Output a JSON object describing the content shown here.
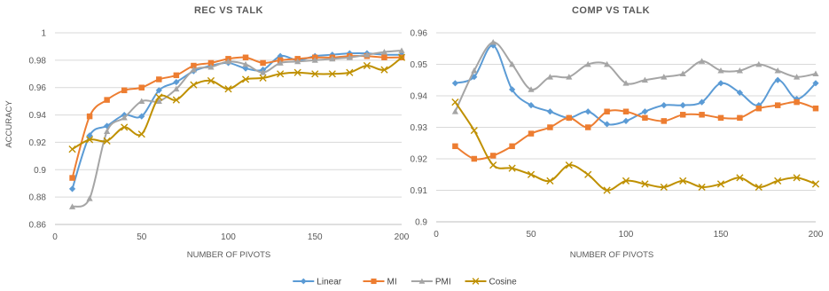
{
  "colors": {
    "Linear": "#5b9bd5",
    "MI": "#ed7d31",
    "PMI": "#a5a5a5",
    "Cosine": "#bf9000",
    "grid": "#d9d9d9",
    "text": "#595959"
  },
  "legend": {
    "placement": "bottom-center",
    "items": [
      {
        "name": "Linear",
        "marker": "diamond"
      },
      {
        "name": "MI",
        "marker": "square"
      },
      {
        "name": "PMI",
        "marker": "triangle"
      },
      {
        "name": "Cosine",
        "marker": "x"
      }
    ]
  },
  "chart_data": [
    {
      "type": "line",
      "title": "REC VS TALK",
      "xlabel": "NUMBER OF PIVOTS",
      "ylabel": "ACCURACY",
      "xlim": [
        0,
        200
      ],
      "ylim": [
        0.86,
        1
      ],
      "xticks": [
        0,
        50,
        100,
        150,
        200
      ],
      "yticks": [
        0.86,
        0.88,
        0.9,
        0.92,
        0.94,
        0.96,
        0.98,
        1
      ],
      "ytick_labels": [
        "0.86",
        "0.88",
        "0.9",
        "0.92",
        "0.94",
        "0.96",
        "0.98",
        "1"
      ],
      "grid": "horizontal",
      "x": [
        10,
        20,
        30,
        40,
        50,
        60,
        70,
        80,
        90,
        100,
        110,
        120,
        130,
        140,
        150,
        160,
        170,
        180,
        190,
        200
      ],
      "series": [
        {
          "name": "Linear",
          "values": [
            0.886,
            0.925,
            0.932,
            0.94,
            0.939,
            0.958,
            0.964,
            0.972,
            0.976,
            0.978,
            0.974,
            0.973,
            0.983,
            0.98,
            0.983,
            0.984,
            0.985,
            0.985,
            0.984,
            0.984
          ]
        },
        {
          "name": "MI",
          "values": [
            0.894,
            0.939,
            0.951,
            0.958,
            0.96,
            0.966,
            0.969,
            0.976,
            0.978,
            0.981,
            0.982,
            0.978,
            0.98,
            0.981,
            0.982,
            0.982,
            0.983,
            0.983,
            0.982,
            0.982
          ]
        },
        {
          "name": "PMI",
          "values": [
            0.873,
            0.879,
            0.928,
            0.938,
            0.95,
            0.95,
            0.959,
            0.973,
            0.975,
            0.979,
            0.977,
            0.971,
            0.978,
            0.979,
            0.98,
            0.981,
            0.982,
            0.984,
            0.986,
            0.987
          ]
        },
        {
          "name": "Cosine",
          "values": [
            0.915,
            0.922,
            0.921,
            0.931,
            0.926,
            0.953,
            0.951,
            0.962,
            0.965,
            0.959,
            0.966,
            0.967,
            0.97,
            0.971,
            0.97,
            0.97,
            0.971,
            0.976,
            0.973,
            0.982
          ]
        }
      ]
    },
    {
      "type": "line",
      "title": "COMP VS TALK",
      "xlabel": "NUMBER OF PIVOTS",
      "ylabel": "",
      "xlim": [
        0,
        200
      ],
      "ylim": [
        0.9,
        0.96
      ],
      "xticks": [
        0,
        50,
        100,
        150,
        200
      ],
      "yticks": [
        0.9,
        0.91,
        0.92,
        0.93,
        0.94,
        0.95,
        0.96
      ],
      "ytick_labels": [
        "0.9",
        "0.91",
        "0.92",
        "0.93",
        "0.94",
        "0.95",
        "0.96"
      ],
      "grid": "horizontal",
      "x": [
        10,
        20,
        30,
        40,
        50,
        60,
        70,
        80,
        90,
        100,
        110,
        120,
        130,
        140,
        150,
        160,
        170,
        180,
        190,
        200
      ],
      "series": [
        {
          "name": "Linear",
          "values": [
            0.944,
            0.946,
            0.956,
            0.942,
            0.937,
            0.935,
            0.933,
            0.935,
            0.931,
            0.932,
            0.935,
            0.937,
            0.937,
            0.938,
            0.944,
            0.941,
            0.937,
            0.945,
            0.939,
            0.944
          ]
        },
        {
          "name": "MI",
          "values": [
            0.924,
            0.92,
            0.921,
            0.924,
            0.928,
            0.93,
            0.933,
            0.93,
            0.935,
            0.935,
            0.933,
            0.932,
            0.934,
            0.934,
            0.933,
            0.933,
            0.936,
            0.937,
            0.938,
            0.936
          ]
        },
        {
          "name": "PMI",
          "values": [
            0.935,
            0.948,
            0.957,
            0.95,
            0.942,
            0.946,
            0.946,
            0.95,
            0.95,
            0.944,
            0.945,
            0.946,
            0.947,
            0.951,
            0.948,
            0.948,
            0.95,
            0.948,
            0.946,
            0.947
          ]
        },
        {
          "name": "Cosine",
          "values": [
            0.938,
            0.929,
            0.918,
            0.917,
            0.915,
            0.913,
            0.918,
            0.915,
            0.91,
            0.913,
            0.912,
            0.911,
            0.913,
            0.911,
            0.912,
            0.914,
            0.911,
            0.913,
            0.914,
            0.912
          ]
        }
      ]
    }
  ]
}
